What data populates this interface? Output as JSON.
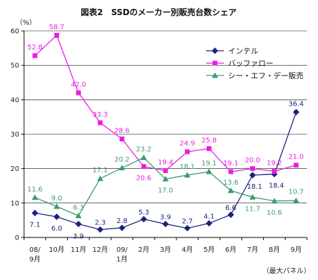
{
  "chart_data": {
    "type": "line",
    "title": "図表2　SSDのメーカー別販売台数シェア",
    "y_unit": "（%）",
    "note": "（最大パネル）",
    "ylim": [
      0,
      60
    ],
    "y_ticks": [
      "0",
      "10",
      "20",
      "30",
      "40",
      "50",
      "60"
    ],
    "grid": "horizontal",
    "legend_position": "top-right",
    "categories": [
      [
        "08/",
        "9月"
      ],
      [
        "10月"
      ],
      [
        "11月"
      ],
      [
        "12月"
      ],
      [
        "09/",
        "1月"
      ],
      [
        "2月"
      ],
      [
        "3月"
      ],
      [
        "4月"
      ],
      [
        "5月"
      ],
      [
        "6月"
      ],
      [
        "7月"
      ],
      [
        "8月"
      ],
      [
        "9月"
      ]
    ],
    "series": [
      {
        "name": "インテル",
        "color": "#1a237e",
        "marker": "diamond",
        "values": [
          7.1,
          6.0,
          3.9,
          2.3,
          2.8,
          5.3,
          3.9,
          2.7,
          4.1,
          6.6,
          18.1,
          18.4,
          36.4
        ],
        "labels": [
          "7.1",
          "6.0",
          "3.9",
          "2.3",
          "2.8",
          "5.3",
          "3.9",
          "2.7",
          "4.1",
          "6.6",
          "18.1",
          "18.4",
          "36.4"
        ]
      },
      {
        "name": "バッファロー",
        "color": "#e91ee6",
        "marker": "square",
        "values": [
          52.8,
          58.7,
          42.0,
          33.3,
          28.6,
          20.6,
          19.4,
          24.9,
          25.8,
          19.1,
          20.0,
          19.2,
          21.0
        ],
        "labels": [
          "52.8",
          "58.7",
          "42.0",
          "33.3",
          "28.6",
          "20.6",
          "19.4",
          "24.9",
          "25.8",
          "19.1",
          "20.0",
          "19.2",
          "21.0"
        ]
      },
      {
        "name": "シー・エフ・デー販売",
        "color": "#3a9a72",
        "marker": "triangle",
        "values": [
          11.6,
          9.0,
          6.3,
          17.1,
          20.2,
          23.2,
          17.0,
          18.1,
          19.1,
          13.6,
          11.7,
          10.6,
          10.7
        ],
        "labels": [
          "11.6",
          "9.0",
          "6.3",
          "17.1",
          "20.2",
          "23.2",
          "17.0",
          "18.1",
          "19.1",
          "13.6",
          "11.7",
          "10.6",
          "10.7"
        ]
      }
    ]
  }
}
